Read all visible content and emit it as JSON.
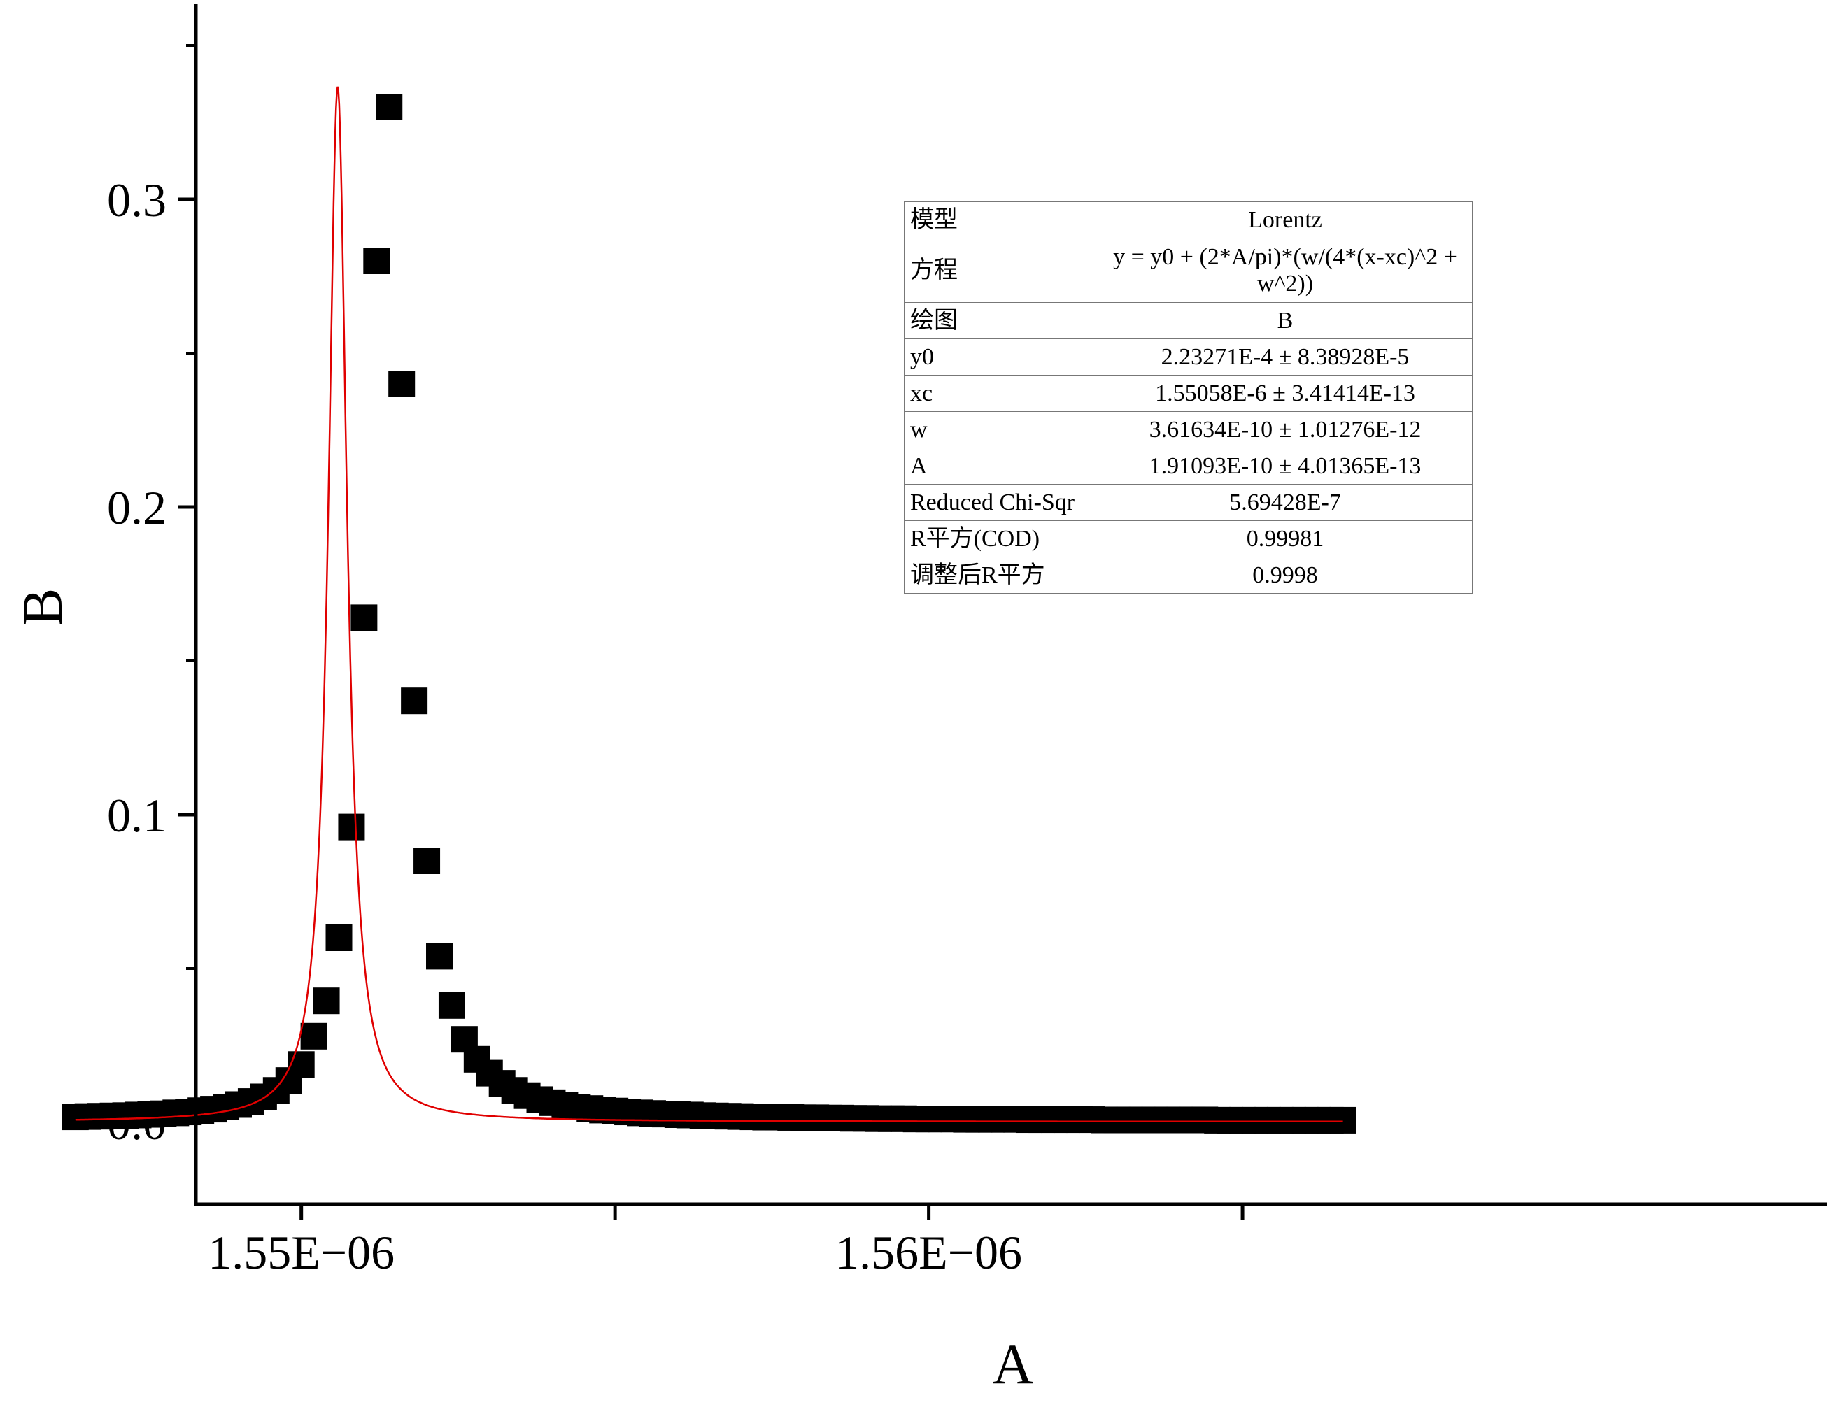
{
  "chart_data": {
    "type": "scatter",
    "xlabel": "A",
    "ylabel": "B",
    "xlim": [
      1.54832e-06,
      1.57432e-06
    ],
    "ylim": [
      -0.026,
      0.362
    ],
    "xticks": [
      1.545e-06,
      1.55e-06,
      1.555e-06,
      1.56e-06,
      1.565e-06
    ],
    "xtick_labels": [
      "",
      "1.55E−06",
      "",
      "1.56E−06",
      ""
    ],
    "yticks": [
      0.0,
      0.1,
      0.2,
      0.3
    ],
    "ytick_labels": [
      "0.0",
      "0.1",
      "0.2",
      "0.3"
    ],
    "colors": {
      "marker": "#000000",
      "fit": "#e00000",
      "axis": "#000000"
    },
    "series": [
      {
        "kind": "scatter",
        "marker": "square",
        "x": [
          1.5464e-06,
          1.5466e-06,
          1.5468e-06,
          1.547e-06,
          1.5472e-06,
          1.5474e-06,
          1.5476e-06,
          1.5478e-06,
          1.548e-06,
          1.5482e-06,
          1.5484e-06,
          1.5486e-06,
          1.5488e-06,
          1.549e-06,
          1.5492e-06,
          1.5494e-06,
          1.5496e-06,
          1.5498e-06,
          1.55e-06,
          1.5502e-06,
          1.5504e-06,
          1.5506e-06,
          1.5508e-06,
          1.551e-06,
          1.5512e-06,
          1.5514e-06,
          1.5516e-06,
          1.5518e-06,
          1.552e-06,
          1.5522e-06,
          1.5524e-06,
          1.5526e-06,
          1.5528e-06,
          1.553e-06,
          1.5532e-06,
          1.5534e-06,
          1.5536e-06,
          1.5538e-06,
          1.554e-06,
          1.5542e-06,
          1.5544e-06,
          1.5546e-06,
          1.5548e-06,
          1.555e-06,
          1.5552e-06,
          1.5554e-06,
          1.5556e-06,
          1.5558e-06,
          1.556e-06,
          1.5562e-06,
          1.5564e-06,
          1.5566e-06,
          1.5568e-06,
          1.557e-06,
          1.5572e-06,
          1.5574e-06,
          1.5576e-06,
          1.5578e-06,
          1.558e-06,
          1.5582e-06,
          1.5584e-06,
          1.5586e-06,
          1.5588e-06,
          1.559e-06,
          1.5592e-06,
          1.5594e-06,
          1.5596e-06,
          1.5598e-06,
          1.56e-06,
          1.5602e-06,
          1.5604e-06,
          1.5606e-06,
          1.5608e-06,
          1.561e-06,
          1.5612e-06,
          1.5614e-06,
          1.5616e-06,
          1.5618e-06,
          1.562e-06,
          1.5622e-06,
          1.5624e-06,
          1.5626e-06,
          1.5628e-06,
          1.563e-06,
          1.5632e-06,
          1.5634e-06,
          1.5636e-06,
          1.5638e-06,
          1.564e-06,
          1.5642e-06,
          1.5644e-06,
          1.5646e-06,
          1.5648e-06,
          1.565e-06,
          1.5652e-06,
          1.5654e-06,
          1.5656e-06,
          1.5658e-06,
          1.566e-06,
          1.5662e-06,
          1.5664e-06,
          1.5666e-06
        ],
        "y": [
          0.0018,
          0.0019,
          0.002,
          0.0021,
          0.0022,
          0.0024,
          0.0026,
          0.0028,
          0.0031,
          0.0034,
          0.0038,
          0.0043,
          0.005,
          0.0058,
          0.0068,
          0.0083,
          0.0104,
          0.0136,
          0.0188,
          0.028,
          0.0395,
          0.06,
          0.096,
          0.164,
          0.28,
          0.33,
          0.24,
          0.137,
          0.085,
          0.054,
          0.038,
          0.027,
          0.0205,
          0.016,
          0.0127,
          0.0104,
          0.0087,
          0.0074,
          0.0064,
          0.0056,
          0.005,
          0.0045,
          0.004,
          0.0037,
          0.0034,
          0.0031,
          0.0029,
          0.0027,
          0.0025,
          0.0024,
          0.0022,
          0.0021,
          0.002,
          0.0019,
          0.0018,
          0.0017,
          0.0017,
          0.0016,
          0.0015,
          0.0015,
          0.0014,
          0.0014,
          0.0013,
          0.0013,
          0.0012,
          0.0012,
          0.0012,
          0.0011,
          0.0011,
          0.0011,
          0.0011,
          0.001,
          0.001,
          0.001,
          0.001,
          0.001,
          0.0009,
          0.0009,
          0.0009,
          0.0009,
          0.0009,
          0.0009,
          0.0008,
          0.0008,
          0.0008,
          0.0008,
          0.0008,
          0.0008,
          0.0008,
          0.0008,
          0.0008,
          0.0007,
          0.0007,
          0.0007,
          0.0007,
          0.0007,
          0.0007,
          0.0007,
          0.0007,
          0.0007,
          0.0007,
          0.0007
        ]
      },
      {
        "kind": "line",
        "model": "Lorentz",
        "params": {
          "y0": 0.000223271,
          "xc": 1.55058e-06,
          "w": 3.61634e-10,
          "A": 1.91093e-10
        },
        "x_range": [
          1.5464e-06,
          1.5666e-06
        ]
      }
    ]
  },
  "fit_table": {
    "rows": [
      {
        "key": "模型",
        "value": "Lorentz"
      },
      {
        "key": "方程",
        "value": "y = y0 + (2*A/pi)*(w/(4*(x-xc)^2 + w^2))"
      },
      {
        "key": "绘图",
        "value": "B"
      },
      {
        "key": "y0",
        "value": "2.23271E-4 ± 8.38928E-5"
      },
      {
        "key": "xc",
        "value": "1.55058E-6 ± 3.41414E-13"
      },
      {
        "key": "w",
        "value": "3.61634E-10 ± 1.01276E-12"
      },
      {
        "key": "A",
        "value": "1.91093E-10 ± 4.01365E-13"
      },
      {
        "key": "Reduced Chi-Sqr",
        "value": "5.69428E-7"
      },
      {
        "key": "R平方(COD)",
        "value": "0.99981"
      },
      {
        "key": "调整后R平方",
        "value": "0.9998"
      }
    ]
  }
}
